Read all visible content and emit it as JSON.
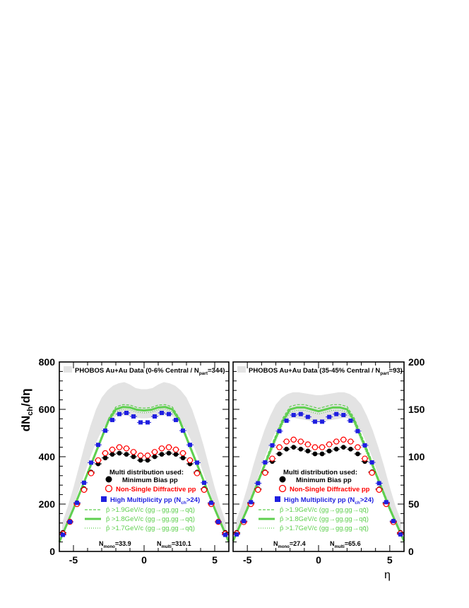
{
  "figure": {
    "ylabel_main": "dN",
    "ylabel_sub": "ch",
    "ylabel_tail": "/dη",
    "xlabel": "η"
  },
  "legend": {
    "header": "Multi distribution used:",
    "minbias": "Minimum Bias pp",
    "nsd": "Non-Single Diffractive pp",
    "highmult_main": "High Multiplicity pp (N",
    "highmult_sub": "ch",
    "highmult_tail": ">24)",
    "pt19": "p̂  >1.9GeV/c (gg→gg,gg→qq̄)",
    "pt18": "p̂  >1.8GeV/c (gg→gg,gg→qq̄)",
    "pt17": "p̂  >1.7GeV/c (gg→gg,gg→qq̄)",
    "pt_sub": "T"
  },
  "colors": {
    "band": "#e3e3e3",
    "minbias": "#000000",
    "nsd": "#ff0000",
    "highmult": "#1f1fe0",
    "pythia": "#5fcf4f",
    "highmult_text": "#1f1fe0"
  },
  "chart_data": [
    {
      "type": "line",
      "panel": "left",
      "title_main": "PHOBOS Au+Au Data (0-6% Central / N",
      "title_sub": "part",
      "title_tail": "=344)",
      "xlim": [
        -6,
        6
      ],
      "ylim": [
        0,
        800
      ],
      "yticks": [
        "0",
        "200",
        "400",
        "600",
        "800"
      ],
      "xticks": [
        "-5",
        "0",
        "5"
      ],
      "n_mono": "N",
      "n_mono_sub": "mono",
      "n_mono_val": "=33.9",
      "n_multi": "N",
      "n_multi_sub": "multi",
      "n_multi_val": "=310.1",
      "band_x": [
        -5.8,
        -5.4,
        -5.0,
        -4.6,
        -4.2,
        -3.8,
        -3.4,
        -3.0,
        -2.6,
        -2.2,
        -1.8,
        -1.4,
        -1.0,
        -0.6,
        -0.2,
        0.2,
        0.6,
        1.0,
        1.4,
        1.8,
        2.2,
        2.6,
        3.0,
        3.4,
        3.8,
        4.2,
        4.6,
        5.0,
        5.4,
        5.8
      ],
      "band_lo": [
        60,
        120,
        190,
        260,
        330,
        400,
        460,
        510,
        545,
        565,
        575,
        575,
        570,
        565,
        562,
        562,
        565,
        570,
        575,
        575,
        565,
        545,
        510,
        460,
        400,
        330,
        260,
        190,
        120,
        60
      ],
      "band_hi": [
        120,
        190,
        270,
        360,
        450,
        530,
        600,
        650,
        680,
        700,
        710,
        715,
        705,
        690,
        685,
        685,
        690,
        705,
        715,
        710,
        700,
        680,
        650,
        600,
        530,
        450,
        360,
        270,
        190,
        120
      ],
      "minbias_x": [
        -5.75,
        -5.25,
        -4.75,
        -4.25,
        -3.75,
        -3.25,
        -2.75,
        -2.25,
        -1.75,
        -1.25,
        -0.75,
        -0.25,
        0.25,
        0.75,
        1.25,
        1.75,
        2.25,
        2.75,
        3.25,
        3.75,
        4.25,
        4.75,
        5.25,
        5.75
      ],
      "minbias_y": [
        80,
        125,
        205,
        265,
        335,
        370,
        395,
        410,
        415,
        410,
        400,
        385,
        385,
        400,
        410,
        415,
        410,
        395,
        370,
        335,
        265,
        205,
        125,
        80
      ],
      "nsd_x": [
        -5.75,
        -5.25,
        -4.75,
        -4.25,
        -3.75,
        -3.25,
        -2.75,
        -2.25,
        -1.75,
        -1.25,
        -0.75,
        -0.25,
        0.25,
        0.75,
        1.25,
        1.75,
        2.25,
        2.75,
        3.25,
        3.75,
        4.25,
        4.75,
        5.25,
        5.75
      ],
      "nsd_y": [
        75,
        125,
        200,
        260,
        330,
        385,
        415,
        430,
        440,
        435,
        420,
        405,
        405,
        420,
        435,
        440,
        430,
        415,
        385,
        330,
        260,
        200,
        125,
        75
      ],
      "highmult_x": [
        -5.75,
        -5.25,
        -4.75,
        -4.25,
        -3.75,
        -3.25,
        -2.75,
        -2.25,
        -1.75,
        -1.25,
        -0.75,
        -0.25,
        0.25,
        0.75,
        1.25,
        1.75,
        2.25,
        2.75,
        3.25,
        3.75,
        4.25,
        4.75,
        5.25,
        5.75
      ],
      "highmult_y": [
        70,
        125,
        205,
        290,
        375,
        450,
        510,
        555,
        580,
        585,
        570,
        545,
        545,
        570,
        585,
        580,
        555,
        510,
        450,
        375,
        290,
        205,
        125,
        70
      ],
      "pythia_x": [
        -6.0,
        -5.5,
        -5.0,
        -4.5,
        -4.0,
        -3.5,
        -3.0,
        -2.5,
        -2.0,
        -1.5,
        -1.0,
        -0.5,
        0.0,
        0.5,
        1.0,
        1.5,
        2.0,
        2.5,
        3.0,
        3.5,
        4.0,
        4.5,
        5.0,
        5.5,
        6.0
      ],
      "pt18_y": [
        40,
        110,
        180,
        255,
        330,
        405,
        480,
        555,
        600,
        610,
        608,
        598,
        595,
        598,
        608,
        610,
        600,
        555,
        480,
        405,
        330,
        255,
        180,
        110,
        40
      ],
      "pt19_y": [
        42,
        113,
        184,
        260,
        336,
        412,
        488,
        563,
        610,
        620,
        618,
        608,
        605,
        608,
        618,
        620,
        610,
        563,
        488,
        412,
        336,
        260,
        184,
        113,
        42
      ],
      "pt17_y": [
        38,
        107,
        176,
        250,
        324,
        398,
        472,
        547,
        590,
        600,
        598,
        588,
        585,
        588,
        598,
        600,
        590,
        547,
        472,
        398,
        324,
        250,
        176,
        107,
        38
      ]
    },
    {
      "type": "line",
      "panel": "right",
      "title_main": "PHOBOS Au+Au Data (35-45% Central / N",
      "title_sub": "part",
      "title_tail": "=93)",
      "xlim": [
        -6,
        6
      ],
      "ylim": [
        0,
        200
      ],
      "yticks": [
        "0",
        "50",
        "100",
        "150",
        "200"
      ],
      "xticks": [
        "-5",
        "0",
        "5"
      ],
      "n_mono": "N",
      "n_mono_sub": "mono",
      "n_mono_val": "=27.4",
      "n_multi": "N",
      "n_multi_sub": "multi",
      "n_multi_val": "=65.6",
      "band_x": [
        -5.8,
        -5.4,
        -5.0,
        -4.6,
        -4.2,
        -3.8,
        -3.4,
        -3.0,
        -2.6,
        -2.2,
        -1.8,
        -1.4,
        -1.0,
        -0.6,
        -0.2,
        0.2,
        0.6,
        1.0,
        1.4,
        1.8,
        2.2,
        2.6,
        3.0,
        3.4,
        3.8,
        4.2,
        4.6,
        5.0,
        5.4,
        5.8
      ],
      "band_lo": [
        17,
        30,
        45,
        62,
        80,
        98,
        113,
        127,
        135,
        140,
        141,
        140,
        139,
        138,
        137,
        137,
        138,
        139,
        140,
        141,
        140,
        135,
        127,
        113,
        98,
        80,
        62,
        45,
        30,
        17
      ],
      "band_hi": [
        32,
        48,
        68,
        90,
        110,
        128,
        143,
        155,
        162,
        166,
        168,
        168,
        167,
        166,
        165,
        165,
        166,
        167,
        168,
        168,
        166,
        162,
        155,
        143,
        128,
        110,
        90,
        68,
        48,
        32
      ],
      "minbias_x": [
        -5.75,
        -5.25,
        -4.75,
        -4.25,
        -3.75,
        -3.25,
        -2.75,
        -2.25,
        -1.75,
        -1.25,
        -0.75,
        -0.25,
        0.25,
        0.75,
        1.25,
        1.75,
        2.25,
        2.75,
        3.25,
        3.75,
        4.25,
        4.75,
        5.25,
        5.75
      ],
      "minbias_y": [
        20,
        32,
        51,
        66,
        84,
        95,
        103,
        108,
        110,
        108,
        106,
        103,
        103,
        106,
        108,
        110,
        108,
        103,
        95,
        84,
        66,
        51,
        32,
        20
      ],
      "nsd_x": [
        -5.75,
        -5.25,
        -4.75,
        -4.25,
        -3.75,
        -3.25,
        -2.75,
        -2.25,
        -1.75,
        -1.25,
        -0.75,
        -0.25,
        0.25,
        0.75,
        1.25,
        1.75,
        2.25,
        2.75,
        3.25,
        3.75,
        4.25,
        4.75,
        5.25,
        5.75
      ],
      "nsd_y": [
        19,
        31,
        50,
        65,
        83,
        98,
        110,
        116,
        118,
        116,
        113,
        110,
        110,
        113,
        116,
        118,
        116,
        110,
        98,
        83,
        65,
        50,
        31,
        19
      ],
      "highmult_x": [
        -5.75,
        -5.25,
        -4.75,
        -4.25,
        -3.75,
        -3.25,
        -2.75,
        -2.25,
        -1.75,
        -1.25,
        -0.75,
        -0.25,
        0.25,
        0.75,
        1.25,
        1.75,
        2.25,
        2.75,
        3.25,
        3.75,
        4.25,
        4.75,
        5.25,
        5.75
      ],
      "highmult_y": [
        18,
        32,
        52,
        72,
        94,
        112,
        127,
        138,
        144,
        145,
        142,
        137,
        137,
        142,
        145,
        144,
        138,
        127,
        112,
        94,
        72,
        52,
        32,
        18
      ],
      "pythia_x": [
        -6.0,
        -5.5,
        -5.0,
        -4.5,
        -4.0,
        -3.5,
        -3.0,
        -2.5,
        -2.0,
        -1.5,
        -1.0,
        -0.5,
        0.0,
        0.5,
        1.0,
        1.5,
        2.0,
        2.5,
        3.0,
        3.5,
        4.0,
        4.5,
        5.0,
        5.5,
        6.0
      ],
      "pt18_y": [
        11,
        28,
        45,
        64,
        83,
        102,
        120,
        138,
        150,
        152,
        152,
        150,
        148,
        150,
        152,
        152,
        150,
        138,
        120,
        102,
        83,
        64,
        45,
        28,
        11
      ],
      "pt19_y": [
        12,
        29,
        47,
        66,
        85,
        105,
        123,
        141,
        153,
        155,
        155,
        153,
        151,
        153,
        155,
        155,
        153,
        141,
        123,
        105,
        85,
        66,
        47,
        29,
        12
      ],
      "pt17_y": [
        10,
        27,
        43,
        62,
        81,
        99,
        117,
        135,
        147,
        149,
        149,
        147,
        145,
        147,
        149,
        149,
        147,
        135,
        117,
        99,
        81,
        62,
        43,
        27,
        10
      ]
    }
  ]
}
